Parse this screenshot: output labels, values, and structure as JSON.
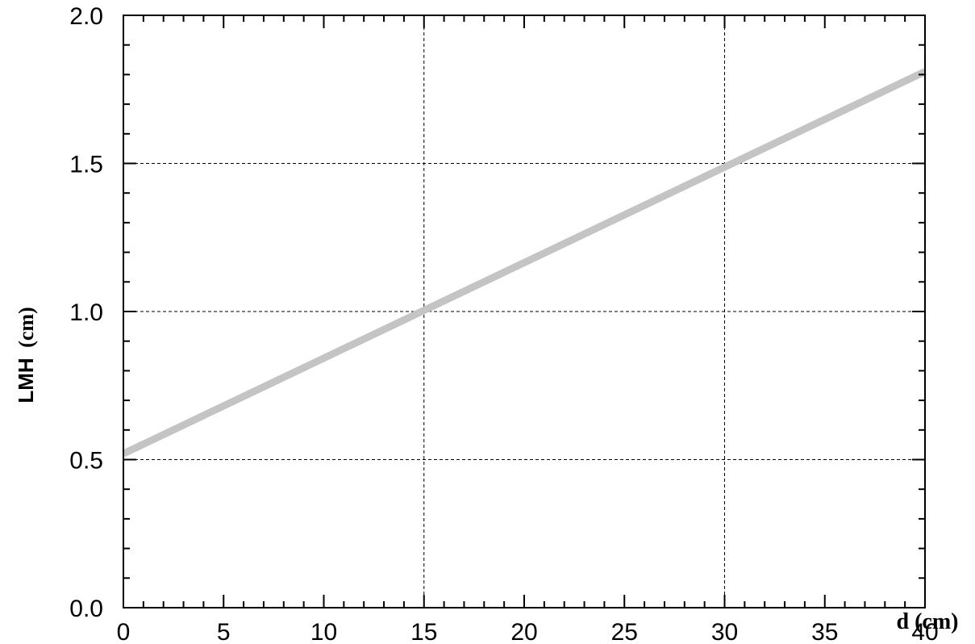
{
  "chart_data": {
    "type": "line",
    "title": "",
    "xlabel": "d (cm)",
    "ylabel_main": "LMH",
    "ylabel_unit": "(cm)",
    "xlim": [
      0,
      40
    ],
    "ylim": [
      0,
      2.0
    ],
    "x_ticks": [
      0,
      5,
      10,
      15,
      20,
      25,
      30,
      35,
      40
    ],
    "x_tick_labels": [
      "0",
      "5",
      "10",
      "15",
      "20",
      "25",
      "30",
      "35",
      "40"
    ],
    "y_ticks": [
      0,
      0.5,
      1.0,
      1.5,
      2.0
    ],
    "y_tick_labels": [
      "0.0",
      "0.5",
      "1.0",
      "1.5",
      "2.0"
    ],
    "x_minor_step": 1,
    "y_minor_step": 0.1,
    "grid_x": [
      15,
      30
    ],
    "grid_y": [
      0.5,
      1.0,
      1.5
    ],
    "grid": "dashed",
    "series": [
      {
        "color": "#c4c4c4",
        "x": [
          0,
          40
        ],
        "y": [
          0.52,
          1.81
        ]
      }
    ]
  }
}
